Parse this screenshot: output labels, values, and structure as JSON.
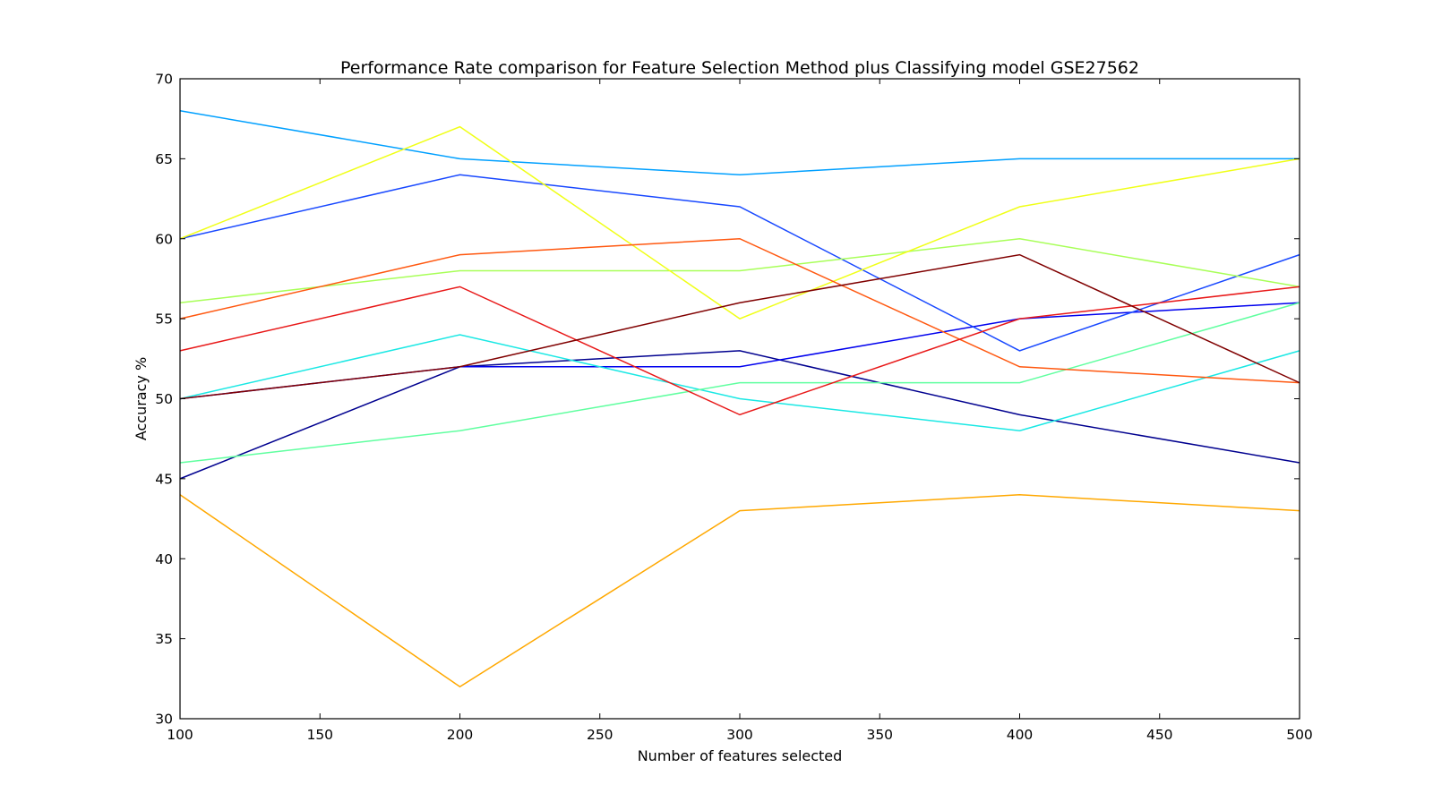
{
  "chart_data": {
    "type": "line",
    "title": "Performance Rate comparison for Feature Selection Method plus Classifying model GSE27562",
    "xlabel": "Number of features selected",
    "ylabel": "Accuracy %",
    "xlim": [
      100,
      500
    ],
    "ylim": [
      30,
      70
    ],
    "xticks": [
      100,
      150,
      200,
      250,
      300,
      350,
      400,
      450,
      500
    ],
    "yticks": [
      30,
      35,
      40,
      45,
      50,
      55,
      60,
      65,
      70
    ],
    "grid": false,
    "legend": "none",
    "x": [
      100,
      200,
      300,
      400,
      500
    ],
    "series": [
      {
        "color": "#00008f",
        "values": [
          45,
          52,
          53,
          49,
          46
        ]
      },
      {
        "color": "#0000ee",
        "values": [
          50,
          52,
          52,
          55,
          56
        ]
      },
      {
        "color": "#1848ff",
        "values": [
          60,
          64,
          62,
          53,
          59
        ]
      },
      {
        "color": "#00a0ff",
        "values": [
          68,
          65,
          64,
          65,
          65
        ]
      },
      {
        "color": "#1ae8e4",
        "values": [
          50,
          54,
          50,
          48,
          53
        ]
      },
      {
        "color": "#60ffa0",
        "values": [
          46,
          48,
          51,
          51,
          56
        ]
      },
      {
        "color": "#a8ff58",
        "values": [
          56,
          58,
          58,
          60,
          57
        ]
      },
      {
        "color": "#f0ff18",
        "values": [
          60,
          67,
          55,
          62,
          65
        ]
      },
      {
        "color": "#ffa800",
        "values": [
          44,
          32,
          43,
          44,
          43
        ]
      },
      {
        "color": "#ff5810",
        "values": [
          55,
          59,
          60,
          52,
          51
        ]
      },
      {
        "color": "#e81818",
        "values": [
          53,
          57,
          49,
          55,
          57
        ]
      },
      {
        "color": "#800000",
        "values": [
          50,
          52,
          56,
          59,
          51
        ]
      }
    ]
  }
}
